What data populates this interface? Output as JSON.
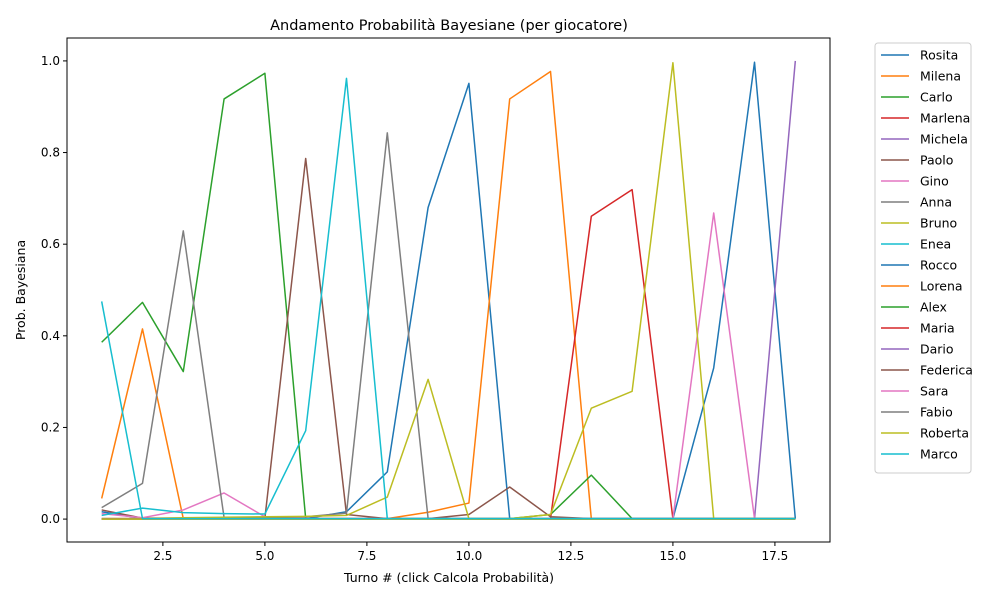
{
  "chart_data": {
    "type": "line",
    "title": "Andamento Probabilità Bayesiane (per giocatore)",
    "xlabel": "Turno # (click Calcola Probabilità)",
    "ylabel": "Prob. Bayesiana",
    "xlim": [
      0.15,
      18.85
    ],
    "ylim": [
      -0.05,
      1.05
    ],
    "xticks": [
      2.5,
      5.0,
      7.5,
      10.0,
      12.5,
      15.0,
      17.5
    ],
    "xtick_labels": [
      "2.5",
      "5.0",
      "7.5",
      "10.0",
      "12.5",
      "15.0",
      "17.5"
    ],
    "yticks": [
      0.0,
      0.2,
      0.4,
      0.6,
      0.8,
      1.0
    ],
    "ytick_labels": [
      "0.0",
      "0.2",
      "0.4",
      "0.6",
      "0.8",
      "1.0"
    ],
    "grid": false,
    "legend_position": "outside-right",
    "x": [
      1,
      2,
      3,
      4,
      5,
      6,
      7,
      8,
      9,
      10,
      11,
      12,
      13,
      14,
      15,
      16,
      17,
      18
    ],
    "series": [
      {
        "name": "Rosita",
        "color": "#1f77b4",
        "values": [
          0.016,
          0.001,
          0.001,
          0.001,
          0.001,
          0.001,
          0.016,
          0.103,
          0.68,
          0.951,
          0.001,
          0.001,
          0.001,
          0.001,
          0.001,
          0.33,
          0.997,
          0.001
        ]
      },
      {
        "name": "Milena",
        "color": "#ff7f0e",
        "values": [
          0.045,
          0.415,
          0.001,
          0.001,
          0.001,
          0.001,
          0.001,
          0.001,
          0.015,
          0.035,
          0.917,
          0.977,
          0.001,
          0.001,
          0.001,
          0.001,
          0.001,
          0.001
        ]
      },
      {
        "name": "Carlo",
        "color": "#2ca02c",
        "values": [
          0.386,
          0.473,
          0.322,
          0.917,
          0.973,
          0.001,
          0.001,
          0.001,
          0.001,
          0.001,
          0.001,
          0.01,
          0.096,
          0.001,
          0.001,
          0.001,
          0.001,
          0.001
        ]
      },
      {
        "name": "Marlena",
        "color": "#d62728",
        "values": [
          0.001,
          0.001,
          0.001,
          0.001,
          0.001,
          0.001,
          0.001,
          0.001,
          0.001,
          0.001,
          0.001,
          0.001,
          0.661,
          0.719,
          0.001,
          0.001,
          0.001,
          0.001
        ]
      },
      {
        "name": "Michela",
        "color": "#9467bd",
        "values": [
          0.001,
          0.001,
          0.001,
          0.001,
          0.001,
          0.001,
          0.001,
          0.001,
          0.001,
          0.001,
          0.001,
          0.001,
          0.001,
          0.001,
          0.001,
          0.001,
          0.001,
          1.0
        ]
      },
      {
        "name": "Paolo",
        "color": "#8c564b",
        "values": [
          0.02,
          0.002,
          0.002,
          0.002,
          0.002,
          0.787,
          0.01,
          0.001,
          0.001,
          0.01,
          0.07,
          0.005,
          0.001,
          0.001,
          0.001,
          0.001,
          0.001,
          0.001
        ]
      },
      {
        "name": "Gino",
        "color": "#e377c2",
        "values": [
          0.012,
          0.003,
          0.02,
          0.057,
          0.005,
          0.001,
          0.001,
          0.001,
          0.001,
          0.001,
          0.001,
          0.001,
          0.001,
          0.001,
          0.001,
          0.668,
          0.001,
          0.001
        ]
      },
      {
        "name": "Anna",
        "color": "#7f7f7f",
        "values": [
          0.025,
          0.078,
          0.629,
          0.003,
          0.003,
          0.005,
          0.013,
          0.843,
          0.001,
          0.001,
          0.001,
          0.001,
          0.001,
          0.001,
          0.001,
          0.001,
          0.001,
          0.001
        ]
      },
      {
        "name": "Bruno",
        "color": "#bcbd22",
        "values": [
          0.001,
          0.001,
          0.003,
          0.004,
          0.005,
          0.006,
          0.008,
          0.048,
          0.305,
          0.001,
          0.001,
          0.01,
          0.242,
          0.279,
          0.996,
          0.001,
          0.001,
          0.001
        ]
      },
      {
        "name": "Enea",
        "color": "#17becf",
        "values": [
          0.008,
          0.024,
          0.014,
          0.012,
          0.011,
          0.193,
          0.962,
          0.001,
          0.001,
          0.001,
          0.001,
          0.001,
          0.001,
          0.001,
          0.001,
          0.001,
          0.001,
          0.001
        ]
      },
      {
        "name": "Rocco",
        "color": "#1f77b4",
        "values": [
          0.0,
          0.0,
          0.0,
          0.0,
          0.0,
          0.0,
          0.0,
          0.0,
          0.0,
          0.0,
          0.0,
          0.0,
          0.0,
          0.0,
          0.0,
          0.0,
          0.0,
          0.0
        ]
      },
      {
        "name": "Lorena",
        "color": "#ff7f0e",
        "values": [
          0.0,
          0.0,
          0.0,
          0.0,
          0.0,
          0.0,
          0.0,
          0.0,
          0.0,
          0.0,
          0.0,
          0.0,
          0.0,
          0.0,
          0.0,
          0.0,
          0.0,
          0.0
        ]
      },
      {
        "name": "Alex",
        "color": "#2ca02c",
        "values": [
          0.0,
          0.0,
          0.0,
          0.0,
          0.0,
          0.0,
          0.0,
          0.0,
          0.0,
          0.0,
          0.0,
          0.0,
          0.0,
          0.0,
          0.0,
          0.0,
          0.0,
          0.0
        ]
      },
      {
        "name": "Maria",
        "color": "#d62728",
        "values": [
          0.0,
          0.0,
          0.0,
          0.0,
          0.0,
          0.0,
          0.0,
          0.0,
          0.0,
          0.0,
          0.0,
          0.0,
          0.0,
          0.0,
          0.0,
          0.0,
          0.0,
          0.0
        ]
      },
      {
        "name": "Dario",
        "color": "#9467bd",
        "values": [
          0.0,
          0.0,
          0.0,
          0.0,
          0.0,
          0.0,
          0.0,
          0.0,
          0.0,
          0.0,
          0.0,
          0.0,
          0.0,
          0.0,
          0.0,
          0.0,
          0.0,
          0.0
        ]
      },
      {
        "name": "Federica",
        "color": "#8c564b",
        "values": [
          0.0,
          0.0,
          0.0,
          0.0,
          0.0,
          0.0,
          0.0,
          0.0,
          0.0,
          0.0,
          0.0,
          0.0,
          0.0,
          0.0,
          0.0,
          0.0,
          0.0,
          0.0
        ]
      },
      {
        "name": "Sara",
        "color": "#e377c2",
        "values": [
          0.0,
          0.0,
          0.0,
          0.0,
          0.0,
          0.0,
          0.0,
          0.0,
          0.0,
          0.0,
          0.0,
          0.0,
          0.0,
          0.0,
          0.0,
          0.0,
          0.0,
          0.0
        ]
      },
      {
        "name": "Fabio",
        "color": "#7f7f7f",
        "values": [
          0.0,
          0.0,
          0.0,
          0.0,
          0.0,
          0.0,
          0.0,
          0.0,
          0.0,
          0.0,
          0.0,
          0.0,
          0.0,
          0.0,
          0.0,
          0.0,
          0.0,
          0.0
        ]
      },
      {
        "name": "Roberta",
        "color": "#bcbd22",
        "values": [
          0.0,
          0.0,
          0.0,
          0.0,
          0.0,
          0.0,
          0.0,
          0.0,
          0.0,
          0.0,
          0.0,
          0.0,
          0.0,
          0.0,
          0.0,
          0.0,
          0.0,
          0.0
        ]
      },
      {
        "name": "Marco",
        "color": "#17becf",
        "values": [
          0.475,
          0.001,
          0.001,
          0.001,
          0.001,
          0.001,
          0.001,
          0.001,
          0.001,
          0.001,
          0.001,
          0.001,
          0.001,
          0.001,
          0.001,
          0.001,
          0.001,
          0.001
        ]
      }
    ]
  }
}
